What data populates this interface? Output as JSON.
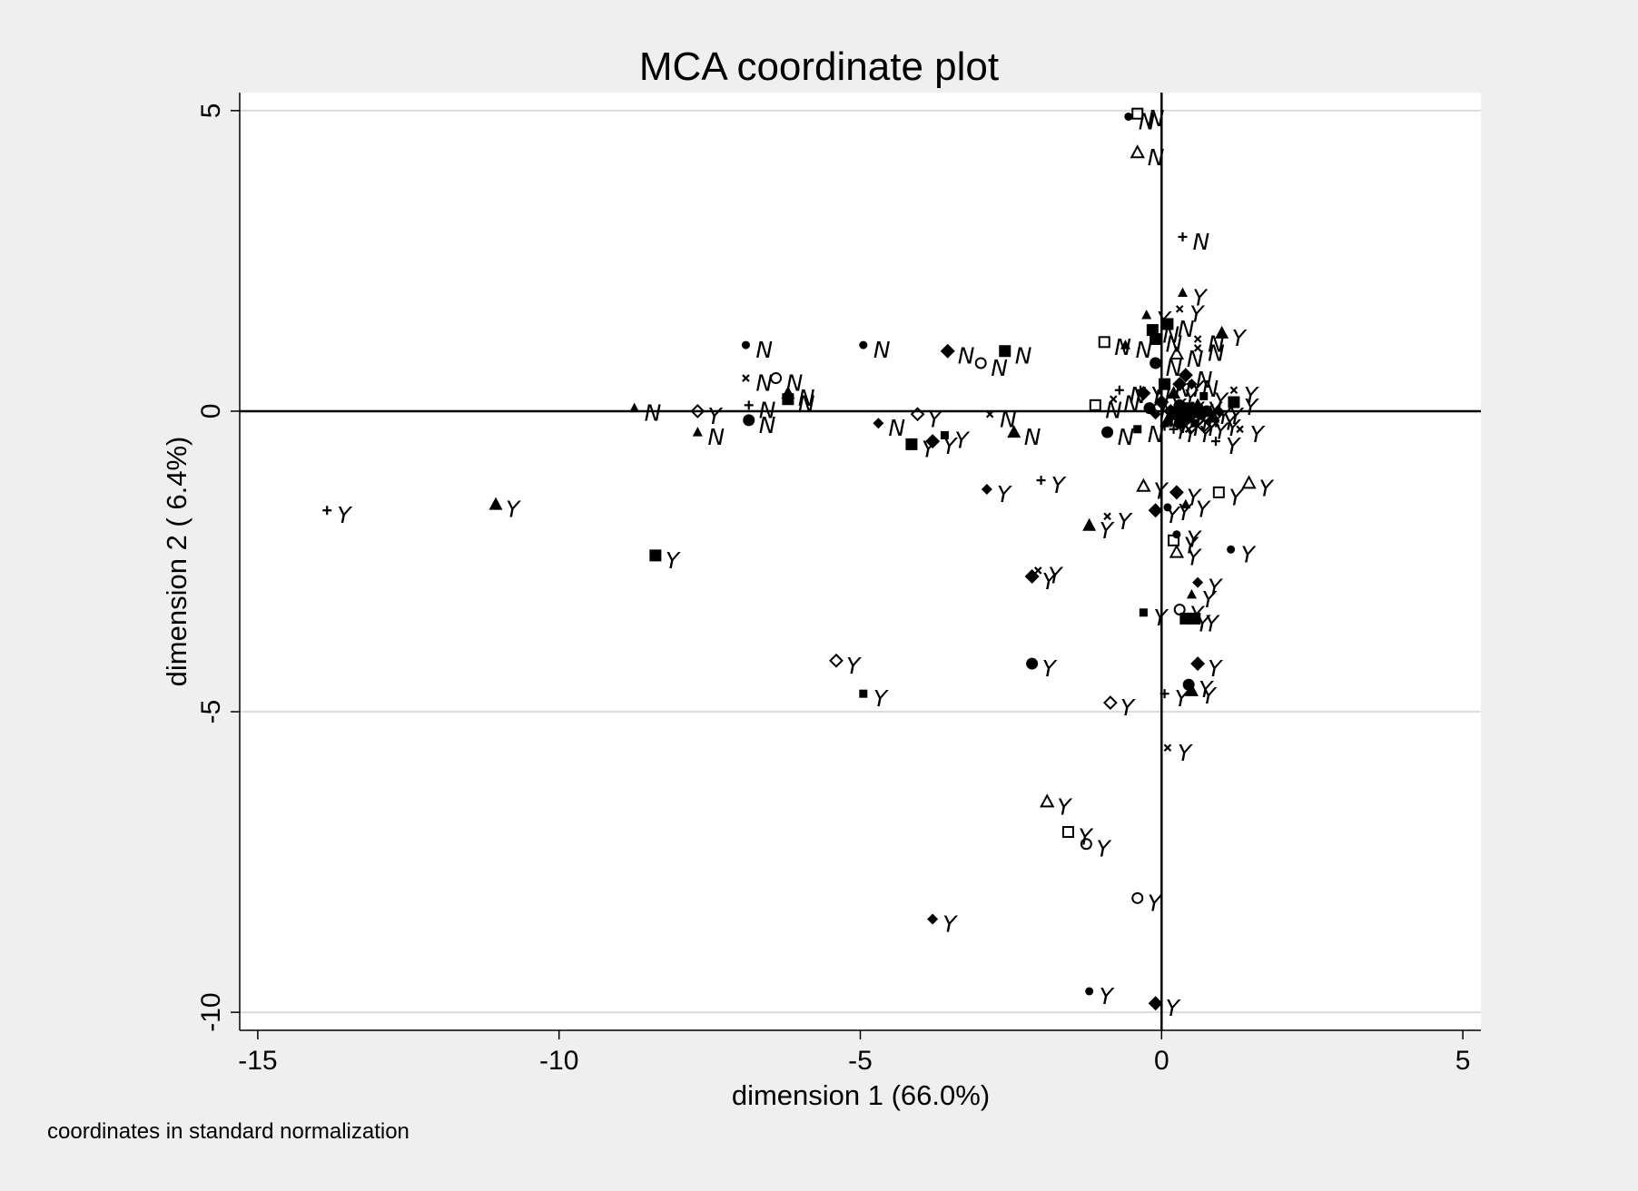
{
  "chart_data": {
    "type": "scatter",
    "title": "MCA coordinate plot",
    "xlabel": "dimension 1 (66.0%)",
    "ylabel": "dimension 2 ( 6.4%)",
    "note": "coordinates in standard normalization",
    "xlim": [
      -15.3,
      5.3
    ],
    "ylim": [
      -10.3,
      5.3
    ],
    "xticks": [
      -15,
      -10,
      -5,
      0,
      5
    ],
    "yticks": [
      5,
      0,
      -5,
      -10
    ],
    "x_tick_labels": [
      "-15",
      "-10",
      "-5",
      "0",
      "5"
    ],
    "y_tick_labels": [
      "5",
      "0",
      "-5",
      "-10"
    ],
    "grid": "horizontal at y ticks",
    "reference_lines": {
      "x": 0,
      "y": 0
    },
    "colors": {
      "background": "#efefef",
      "plot_area": "#ffffff",
      "ink": "#000000",
      "grid": "#dcdcdc"
    },
    "points": [
      {
        "x": -0.4,
        "y": 4.95,
        "m": "hollow-square",
        "label": "N"
      },
      {
        "x": -0.55,
        "y": 4.9,
        "m": "dot",
        "label": "N"
      },
      {
        "x": -0.4,
        "y": 4.3,
        "m": "hollow-triangle",
        "label": "N"
      },
      {
        "x": 0.35,
        "y": 2.9,
        "m": "plus",
        "label": "N"
      },
      {
        "x": 0.35,
        "y": 1.97,
        "m": "small-triangle",
        "label": "Y"
      },
      {
        "x": 0.3,
        "y": 1.7,
        "m": "x",
        "label": "Y"
      },
      {
        "x": -0.25,
        "y": 1.6,
        "m": "small-triangle",
        "label": "Y"
      },
      {
        "x": 0.1,
        "y": 1.45,
        "m": "square",
        "label": "N"
      },
      {
        "x": -0.15,
        "y": 1.35,
        "m": "square",
        "label": "N"
      },
      {
        "x": -0.1,
        "y": 1.2,
        "m": "square",
        "label": "N"
      },
      {
        "x": 0.6,
        "y": 1.2,
        "m": "x",
        "label": "N"
      },
      {
        "x": 1.0,
        "y": 1.3,
        "m": "triangle",
        "label": "Y"
      },
      {
        "x": -0.95,
        "y": 1.15,
        "m": "hollow-square",
        "label": "N"
      },
      {
        "x": -0.6,
        "y": 1.1,
        "m": "small-triangle",
        "label": "N"
      },
      {
        "x": 0.25,
        "y": 0.95,
        "m": "hollow-triangle",
        "label": "N"
      },
      {
        "x": 0.6,
        "y": 1.05,
        "m": "x",
        "label": "N"
      },
      {
        "x": -0.1,
        "y": 0.8,
        "m": "circle",
        "label": "N"
      },
      {
        "x": 0.4,
        "y": 0.6,
        "m": "diamond",
        "label": "N"
      },
      {
        "x": 0.3,
        "y": 0.45,
        "m": "diamond",
        "label": "Y"
      },
      {
        "x": 0.5,
        "y": 0.45,
        "m": "small-diamond",
        "label": "N"
      },
      {
        "x": 0.05,
        "y": 0.45,
        "m": "square",
        "label": "N"
      },
      {
        "x": -0.7,
        "y": 0.35,
        "m": "plus",
        "label": "N"
      },
      {
        "x": -0.35,
        "y": 0.35,
        "m": "plus",
        "label": "Y"
      },
      {
        "x": -0.3,
        "y": 0.3,
        "m": "diamond",
        "label": "N"
      },
      {
        "x": 0.2,
        "y": 0.3,
        "m": "triangle",
        "label": "Y"
      },
      {
        "x": 0.7,
        "y": 0.25,
        "m": "small-square",
        "label": "Y"
      },
      {
        "x": 1.2,
        "y": 0.35,
        "m": "x",
        "label": "Y"
      },
      {
        "x": -0.8,
        "y": 0.2,
        "m": "x",
        "label": "N"
      },
      {
        "x": -1.1,
        "y": 0.1,
        "m": "hollow-square",
        "label": "N"
      },
      {
        "x": 1.2,
        "y": 0.15,
        "m": "square",
        "label": "Y"
      },
      {
        "x": 0.0,
        "y": 0.15,
        "m": "diamond",
        "label": "Y"
      },
      {
        "x": 0.3,
        "y": 0.1,
        "m": "circle",
        "label": "Y"
      },
      {
        "x": 0.6,
        "y": 0.1,
        "m": "triangle",
        "label": "Y"
      },
      {
        "x": 0.45,
        "y": 0.05,
        "m": "square",
        "label": "Y"
      },
      {
        "x": -0.2,
        "y": 0.05,
        "m": "circle",
        "label": "N"
      },
      {
        "x": 0.15,
        "y": 0.0,
        "m": "diamond",
        "label": "Y"
      },
      {
        "x": 0.35,
        "y": 0.0,
        "m": "square",
        "label": "Y"
      },
      {
        "x": 0.55,
        "y": 0.0,
        "m": "diamond",
        "label": "Y"
      },
      {
        "x": 0.75,
        "y": 0.0,
        "m": "circle",
        "label": "Y"
      },
      {
        "x": 0.95,
        "y": 0.0,
        "m": "small-diamond",
        "label": "Y"
      },
      {
        "x": -0.1,
        "y": -0.05,
        "m": "small-diamond",
        "label": "Y"
      },
      {
        "x": 0.25,
        "y": -0.05,
        "m": "square",
        "label": "Y"
      },
      {
        "x": 0.45,
        "y": -0.1,
        "m": "diamond",
        "label": "Y"
      },
      {
        "x": 0.65,
        "y": -0.05,
        "m": "circle",
        "label": "Y"
      },
      {
        "x": 0.85,
        "y": -0.1,
        "m": "triangle",
        "label": "Y"
      },
      {
        "x": 0.1,
        "y": -0.15,
        "m": "triangle",
        "label": "Y"
      },
      {
        "x": 0.3,
        "y": -0.2,
        "m": "circle",
        "label": "Y"
      },
      {
        "x": 0.55,
        "y": -0.2,
        "m": "small-square",
        "label": "Y"
      },
      {
        "x": 0.05,
        "y": -0.25,
        "m": "plus",
        "label": "Y"
      },
      {
        "x": 0.2,
        "y": -0.3,
        "m": "plus",
        "label": "Y"
      },
      {
        "x": 0.45,
        "y": -0.3,
        "m": "x",
        "label": "Y"
      },
      {
        "x": 0.7,
        "y": -0.25,
        "m": "hollow-diamond",
        "label": "Y"
      },
      {
        "x": 0.9,
        "y": -0.2,
        "m": "x",
        "label": "Y"
      },
      {
        "x": 1.3,
        "y": -0.3,
        "m": "x",
        "label": "Y"
      },
      {
        "x": 0.9,
        "y": -0.5,
        "m": "plus",
        "label": "Y"
      },
      {
        "x": -0.9,
        "y": -0.35,
        "m": "circle",
        "label": "N"
      },
      {
        "x": -0.4,
        "y": -0.3,
        "m": "small-square",
        "label": "N"
      },
      {
        "x": -6.9,
        "y": 1.1,
        "m": "dot",
        "label": "N"
      },
      {
        "x": -6.4,
        "y": 0.55,
        "m": "hollow-circle",
        "label": "N"
      },
      {
        "x": -6.9,
        "y": 0.55,
        "m": "x",
        "label": "N"
      },
      {
        "x": -6.85,
        "y": 0.1,
        "m": "plus",
        "label": "N"
      },
      {
        "x": -6.2,
        "y": 0.3,
        "m": "triangle",
        "label": "N"
      },
      {
        "x": -6.2,
        "y": 0.2,
        "m": "square",
        "label": "N"
      },
      {
        "x": -8.75,
        "y": 0.05,
        "m": "small-triangle",
        "label": "N"
      },
      {
        "x": -7.7,
        "y": 0.0,
        "m": "hollow-diamond",
        "label": "Y"
      },
      {
        "x": -7.7,
        "y": -0.35,
        "m": "small-triangle",
        "label": "N"
      },
      {
        "x": -6.85,
        "y": -0.15,
        "m": "circle",
        "label": "N"
      },
      {
        "x": -4.95,
        "y": 1.1,
        "m": "dot",
        "label": "N"
      },
      {
        "x": -3.55,
        "y": 1.0,
        "m": "diamond",
        "label": "N"
      },
      {
        "x": -3.0,
        "y": 0.8,
        "m": "hollow-circle",
        "label": "N"
      },
      {
        "x": -2.6,
        "y": 1.0,
        "m": "square",
        "label": "N"
      },
      {
        "x": -4.7,
        "y": -0.2,
        "m": "small-diamond",
        "label": "N"
      },
      {
        "x": -4.05,
        "y": -0.05,
        "m": "hollow-diamond",
        "label": "Y"
      },
      {
        "x": -4.15,
        "y": -0.55,
        "m": "square",
        "label": "Y"
      },
      {
        "x": -3.8,
        "y": -0.5,
        "m": "diamond",
        "label": "Y"
      },
      {
        "x": -3.6,
        "y": -0.4,
        "m": "small-square",
        "label": "Y"
      },
      {
        "x": -2.85,
        "y": -0.05,
        "m": "x",
        "label": "N"
      },
      {
        "x": -2.45,
        "y": -0.35,
        "m": "triangle",
        "label": "N"
      },
      {
        "x": -13.85,
        "y": -1.65,
        "m": "plus",
        "label": "Y"
      },
      {
        "x": -11.05,
        "y": -1.55,
        "m": "triangle",
        "label": "Y"
      },
      {
        "x": -8.4,
        "y": -2.4,
        "m": "square",
        "label": "Y"
      },
      {
        "x": -2.9,
        "y": -1.3,
        "m": "small-diamond",
        "label": "Y"
      },
      {
        "x": -2.0,
        "y": -1.15,
        "m": "plus",
        "label": "Y"
      },
      {
        "x": -1.2,
        "y": -1.9,
        "m": "triangle",
        "label": "Y"
      },
      {
        "x": -0.9,
        "y": -1.75,
        "m": "x",
        "label": "Y"
      },
      {
        "x": -0.3,
        "y": -1.25,
        "m": "hollow-triangle",
        "label": "Y"
      },
      {
        "x": -0.1,
        "y": -1.65,
        "m": "diamond",
        "label": "Y"
      },
      {
        "x": 0.1,
        "y": -1.6,
        "m": "dot",
        "label": "Y"
      },
      {
        "x": 0.25,
        "y": -1.35,
        "m": "diamond",
        "label": "Y"
      },
      {
        "x": 0.4,
        "y": -1.55,
        "m": "small-triangle",
        "label": "Y"
      },
      {
        "x": 0.95,
        "y": -1.35,
        "m": "hollow-square",
        "label": "Y"
      },
      {
        "x": 1.45,
        "y": -1.2,
        "m": "hollow-triangle",
        "label": "Y"
      },
      {
        "x": 0.2,
        "y": -2.15,
        "m": "hollow-square",
        "label": "Y"
      },
      {
        "x": 0.25,
        "y": -2.05,
        "m": "dot",
        "label": "Y"
      },
      {
        "x": 0.25,
        "y": -2.35,
        "m": "hollow-triangle",
        "label": "Y"
      },
      {
        "x": 1.15,
        "y": -2.3,
        "m": "dot",
        "label": "Y"
      },
      {
        "x": -2.15,
        "y": -2.75,
        "m": "diamond",
        "label": "Y"
      },
      {
        "x": -2.05,
        "y": -2.65,
        "m": "x",
        "label": "Y"
      },
      {
        "x": 0.6,
        "y": -2.85,
        "m": "small-diamond",
        "label": "Y"
      },
      {
        "x": 0.5,
        "y": -3.05,
        "m": "small-triangle",
        "label": "Y"
      },
      {
        "x": -0.3,
        "y": -3.35,
        "m": "small-square",
        "label": "Y"
      },
      {
        "x": 0.3,
        "y": -3.3,
        "m": "hollow-circle",
        "label": "Y"
      },
      {
        "x": 0.4,
        "y": -3.45,
        "m": "square",
        "label": "Y"
      },
      {
        "x": 0.55,
        "y": -3.45,
        "m": "square",
        "label": "Y"
      },
      {
        "x": -5.4,
        "y": -4.15,
        "m": "hollow-diamond",
        "label": "Y"
      },
      {
        "x": -2.15,
        "y": -4.2,
        "m": "circle",
        "label": "Y"
      },
      {
        "x": 0.6,
        "y": -4.2,
        "m": "diamond",
        "label": "Y"
      },
      {
        "x": -4.95,
        "y": -4.7,
        "m": "small-square",
        "label": "Y"
      },
      {
        "x": -0.85,
        "y": -4.85,
        "m": "hollow-diamond",
        "label": "Y"
      },
      {
        "x": 0.05,
        "y": -4.7,
        "m": "plus",
        "label": "Y"
      },
      {
        "x": 0.45,
        "y": -4.55,
        "m": "circle",
        "label": "Y"
      },
      {
        "x": 0.5,
        "y": -4.65,
        "m": "triangle",
        "label": "Y"
      },
      {
        "x": 0.1,
        "y": -5.6,
        "m": "x",
        "label": "Y"
      },
      {
        "x": -1.9,
        "y": -6.5,
        "m": "hollow-triangle",
        "label": "Y"
      },
      {
        "x": -1.55,
        "y": -7.0,
        "m": "hollow-square",
        "label": "Y"
      },
      {
        "x": -1.25,
        "y": -7.2,
        "m": "hollow-circle",
        "label": "Y"
      },
      {
        "x": -0.4,
        "y": -8.1,
        "m": "hollow-circle",
        "label": "Y"
      },
      {
        "x": -3.8,
        "y": -8.45,
        "m": "small-diamond",
        "label": "Y"
      },
      {
        "x": -1.2,
        "y": -9.65,
        "m": "dot",
        "label": "Y"
      },
      {
        "x": -0.1,
        "y": -9.85,
        "m": "diamond",
        "label": "Y"
      }
    ]
  }
}
